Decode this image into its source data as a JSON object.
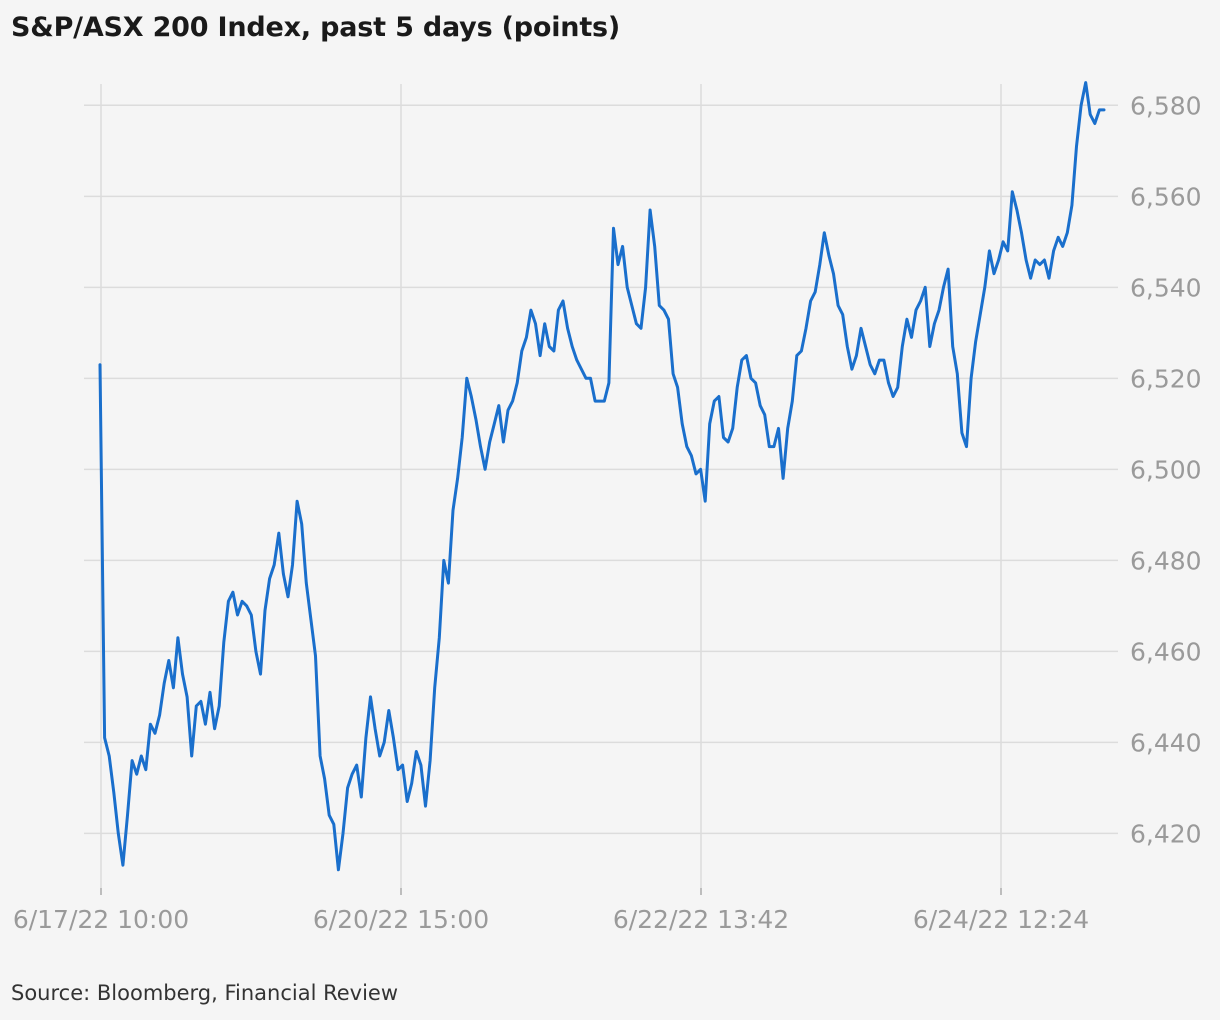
{
  "chart_data": {
    "type": "line",
    "title": "S&P/ASX 200 Index, past 5 days (points)",
    "source": "Source: Bloomberg, Financial Review",
    "ylim": [
      6408,
      6586
    ],
    "y_ticks": [
      6420,
      6440,
      6460,
      6480,
      6500,
      6520,
      6540,
      6560,
      6580
    ],
    "y_tick_labels": [
      "6,420",
      "6,440",
      "6,460",
      "6,480",
      "6,500",
      "6,520",
      "6,540",
      "6,560",
      "6,580"
    ],
    "x_tick_labels": [
      "6/17/22 10:00",
      "6/20/22 15:00",
      "6/22/22 13:42",
      "6/24/22 12:24"
    ],
    "grid": true,
    "line_color": "#1a6fcc",
    "series": [
      {
        "values": [
          6523,
          6441,
          6437,
          6429,
          6420,
          6413,
          6424,
          6436,
          6433,
          6437,
          6434,
          6444,
          6442,
          6446,
          6453,
          6458,
          6452,
          6463,
          6455,
          6450,
          6437,
          6448,
          6449,
          6444,
          6451,
          6443,
          6448,
          6462,
          6471,
          6473,
          6468,
          6471,
          6470,
          6468,
          6460,
          6455,
          6469,
          6476,
          6479,
          6486,
          6477,
          6472,
          6479,
          6493,
          6488,
          6475,
          6467,
          6459,
          6437,
          6432,
          6424,
          6422,
          6412,
          6420,
          6430,
          6433,
          6435,
          6428,
          6441,
          6450,
          6443,
          6437,
          6440,
          6447,
          6441,
          6434,
          6435,
          6427,
          6431,
          6438,
          6435,
          6426,
          6436,
          6452,
          6463,
          6480,
          6475,
          6491,
          6498,
          6507,
          6520,
          6516,
          6511,
          6505,
          6500,
          6506,
          6510,
          6514,
          6506,
          6513,
          6515,
          6519,
          6526,
          6529,
          6535,
          6532,
          6525,
          6532,
          6527,
          6526,
          6535,
          6537,
          6531,
          6527,
          6524,
          6522,
          6520,
          6520,
          6515,
          6515,
          6515,
          6519,
          6553,
          6545,
          6549,
          6540,
          6536,
          6532,
          6531,
          6540,
          6557,
          6549,
          6536,
          6535,
          6533,
          6521,
          6518,
          6510,
          6505,
          6503,
          6499,
          6500,
          6493,
          6510,
          6515,
          6516,
          6507,
          6506,
          6509,
          6518,
          6524,
          6525,
          6520,
          6519,
          6514,
          6512,
          6505,
          6505,
          6509,
          6498,
          6509,
          6515,
          6525,
          6526,
          6531,
          6537,
          6539,
          6545,
          6552,
          6547,
          6543,
          6536,
          6534,
          6527,
          6522,
          6525,
          6531,
          6527,
          6523,
          6521,
          6524,
          6524,
          6519,
          6516,
          6518,
          6527,
          6533,
          6529,
          6535,
          6537,
          6540,
          6527,
          6532,
          6535,
          6540,
          6544,
          6527,
          6521,
          6508,
          6505,
          6520,
          6528,
          6534,
          6540,
          6548,
          6543,
          6546,
          6550,
          6548,
          6561,
          6557,
          6552,
          6546,
          6542,
          6546,
          6545,
          6546,
          6542,
          6548,
          6551,
          6549,
          6552,
          6558,
          6571,
          6580,
          6585,
          6578,
          6576,
          6579,
          6579
        ]
      }
    ]
  }
}
